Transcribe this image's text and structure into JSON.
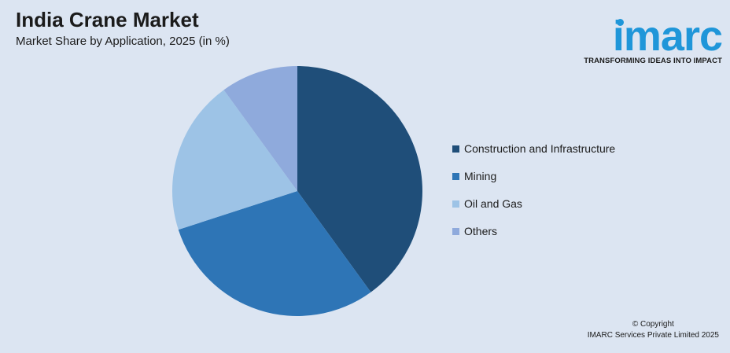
{
  "header": {
    "title": "India Crane Market",
    "subtitle": "Market Share by Application, 2025 (in %)"
  },
  "logo": {
    "wordmark": "imarc",
    "tagline": "TRANSFORMING IDEAS INTO IMPACT"
  },
  "footer": {
    "copyright": "© Copyright",
    "company": "IMARC Services Private Limited 2025"
  },
  "chart_data": {
    "type": "pie",
    "title": "India Crane Market",
    "subtitle": "Market Share by Application, 2025 (in %)",
    "legend_position": "right",
    "categories": [
      "Construction and Infrastructure",
      "Mining",
      "Oil and Gas",
      "Others"
    ],
    "values": [
      40,
      30,
      20,
      10
    ],
    "colors": [
      "#1f4e79",
      "#2e75b6",
      "#9dc3e6",
      "#8faadc"
    ]
  }
}
